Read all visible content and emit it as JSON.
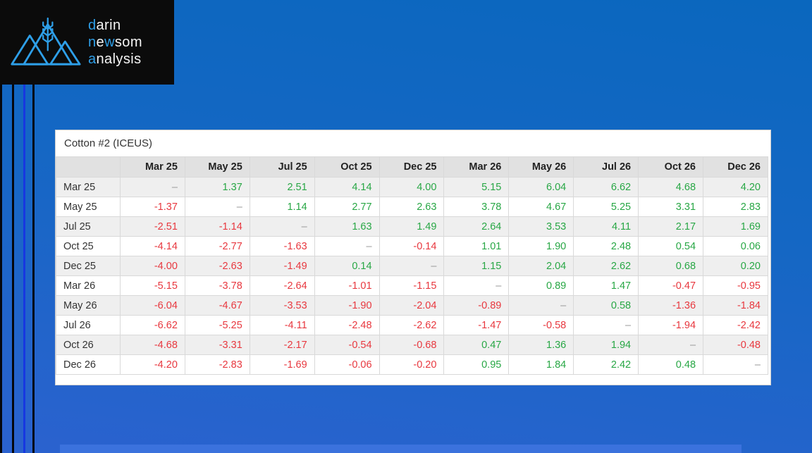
{
  "logo": {
    "icon": "mountains-wheat-icon",
    "accent_color": "#2e9fe8",
    "text_color": "#f5f5f5",
    "background_color": "#0b0b0b",
    "lines": [
      {
        "segments": [
          {
            "text": "d",
            "accent": true
          },
          {
            "text": "arin",
            "accent": false
          }
        ]
      },
      {
        "segments": [
          {
            "text": "n",
            "accent": true
          },
          {
            "text": "e",
            "accent": false
          },
          {
            "text": "w",
            "accent": true
          },
          {
            "text": "som",
            "accent": false
          }
        ]
      },
      {
        "segments": [
          {
            "text": "a",
            "accent": true
          },
          {
            "text": "nalysis",
            "accent": false
          }
        ]
      }
    ]
  },
  "page": {
    "background_top_color": "#0a67be",
    "background_bottom_color": "#2b62cf",
    "pinstripe_colors": [
      "#05070d",
      "#05070d",
      "#1738e0",
      "#05070d"
    ]
  },
  "card": {
    "title": "Cotton #2 (ICEUS)"
  },
  "table": {
    "corner_label": "",
    "columns": [
      "Mar 25",
      "May 25",
      "Jul 25",
      "Oct 25",
      "Dec 25",
      "Mar 26",
      "May 26",
      "Jul 26",
      "Oct 26",
      "Dec 26"
    ],
    "rows": [
      {
        "label": "Mar 25",
        "values": [
          "–",
          "1.37",
          "2.51",
          "4.14",
          "4.00",
          "5.15",
          "6.04",
          "6.62",
          "4.68",
          "4.20"
        ]
      },
      {
        "label": "May 25",
        "values": [
          "-1.37",
          "–",
          "1.14",
          "2.77",
          "2.63",
          "3.78",
          "4.67",
          "5.25",
          "3.31",
          "2.83"
        ]
      },
      {
        "label": "Jul 25",
        "values": [
          "-2.51",
          "-1.14",
          "–",
          "1.63",
          "1.49",
          "2.64",
          "3.53",
          "4.11",
          "2.17",
          "1.69"
        ]
      },
      {
        "label": "Oct 25",
        "values": [
          "-4.14",
          "-2.77",
          "-1.63",
          "–",
          "-0.14",
          "1.01",
          "1.90",
          "2.48",
          "0.54",
          "0.06"
        ]
      },
      {
        "label": "Dec 25",
        "values": [
          "-4.00",
          "-2.63",
          "-1.49",
          "0.14",
          "–",
          "1.15",
          "2.04",
          "2.62",
          "0.68",
          "0.20"
        ]
      },
      {
        "label": "Mar 26",
        "values": [
          "-5.15",
          "-3.78",
          "-2.64",
          "-1.01",
          "-1.15",
          "–",
          "0.89",
          "1.47",
          "-0.47",
          "-0.95"
        ]
      },
      {
        "label": "May 26",
        "values": [
          "-6.04",
          "-4.67",
          "-3.53",
          "-1.90",
          "-2.04",
          "-0.89",
          "–",
          "0.58",
          "-1.36",
          "-1.84"
        ]
      },
      {
        "label": "Jul 26",
        "values": [
          "-6.62",
          "-5.25",
          "-4.11",
          "-2.48",
          "-2.62",
          "-1.47",
          "-0.58",
          "–",
          "-1.94",
          "-2.42"
        ]
      },
      {
        "label": "Oct 26",
        "values": [
          "-4.68",
          "-3.31",
          "-2.17",
          "-0.54",
          "-0.68",
          "0.47",
          "1.36",
          "1.94",
          "–",
          "-0.48"
        ]
      },
      {
        "label": "Dec 26",
        "values": [
          "-4.20",
          "-2.83",
          "-1.69",
          "-0.06",
          "-0.20",
          "0.95",
          "1.84",
          "2.42",
          "0.48",
          "–"
        ]
      }
    ],
    "positive_color": "#28a745",
    "negative_color": "#e8383f",
    "dash_color": "#999999",
    "header_background": "#e1e1e1",
    "stripe_background": "#efefef"
  }
}
